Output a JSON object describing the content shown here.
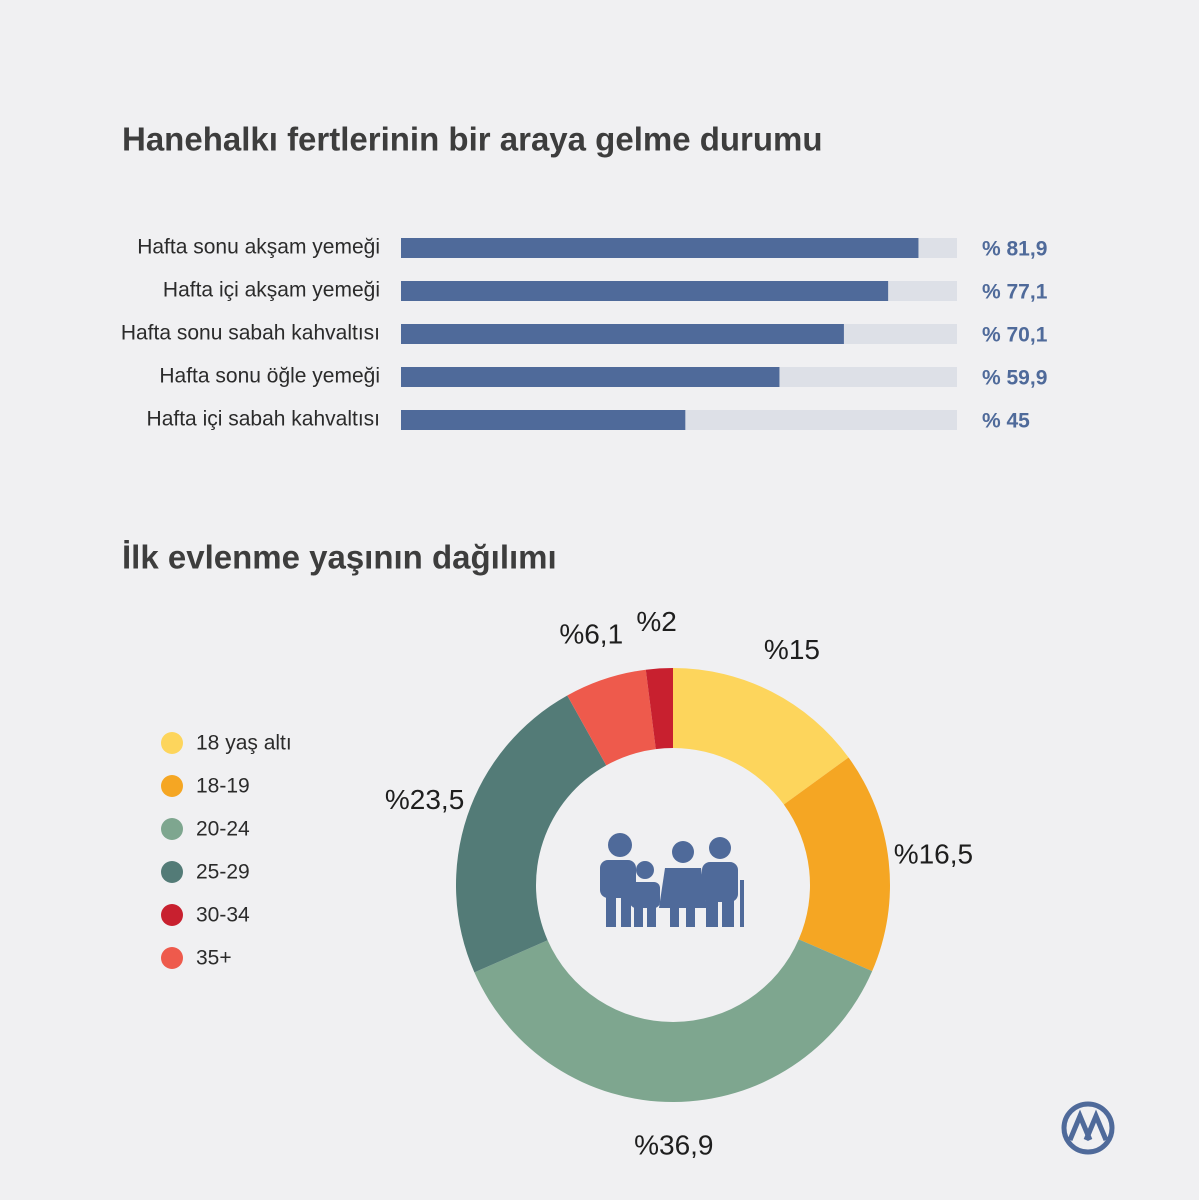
{
  "chart_data": [
    {
      "type": "hbar",
      "title": "Hanehalkı fertlerinin bir araya gelme durumu",
      "categories": [
        "Hafta sonu akşam yemeği",
        "Hafta içi akşam yemeği",
        "Hafta sonu sabah kahvaltısı",
        "Hafta sonu öğle yemeği",
        "Hafta içi sabah kahvaltısı"
      ],
      "values": [
        81.9,
        77.1,
        70.1,
        59.9,
        45
      ],
      "value_labels": [
        "% 81,9",
        "% 77,1",
        "% 70,1",
        "% 59,9",
        "% 45"
      ],
      "color": "#4f6a9a",
      "track_color": "#dde0e7",
      "xlim": [
        0,
        88
      ]
    },
    {
      "type": "donut",
      "title": "İlk evlenme yaşının dağılımı",
      "categories": [
        "18 yaş altı",
        "18-19",
        "20-24",
        "25-29",
        "30-34",
        "35+"
      ],
      "values": [
        15,
        16.5,
        36.9,
        23.5,
        2,
        6.1
      ],
      "value_labels": [
        "%15",
        "%16,5",
        "%36,9",
        "%23,5",
        "%2",
        "%6,1"
      ],
      "colors": [
        "#fdd55c",
        "#f5a623",
        "#7ea68f",
        "#537b77",
        "#c8202f",
        "#ee5a4c"
      ]
    }
  ]
}
